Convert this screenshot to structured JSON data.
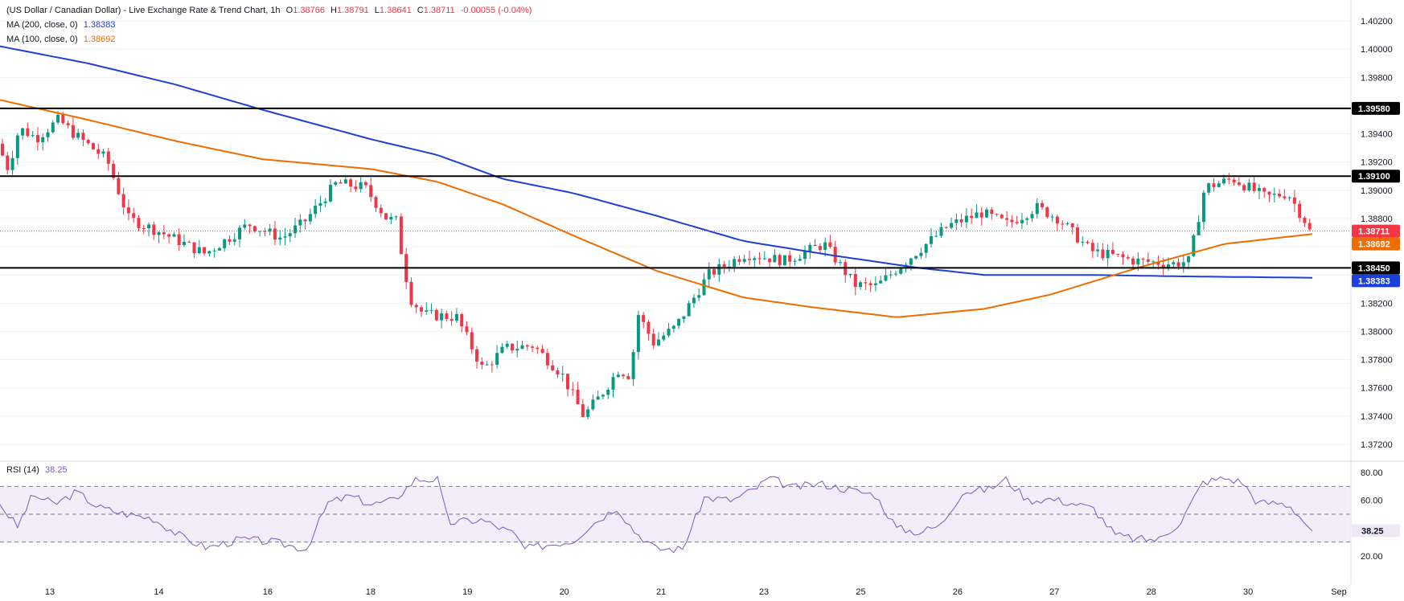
{
  "header": {
    "symbol": "(US Dollar / Canadian Dollar) - Live Exchange Rate & Trend Chart, 1h",
    "open_label": "O",
    "open": "1.38766",
    "high_label": "H",
    "high": "1.38791",
    "low_label": "L",
    "low": "1.38641",
    "close_label": "C",
    "close": "1.38711",
    "change": "-0.00055 (-0.04%)",
    "ma200_label": "MA (200, close, 0)",
    "ma200_value": "1.38383",
    "ma100_label": "MA (100, close, 0)",
    "ma100_value": "1.38692",
    "rsi_label": "RSI (14)",
    "rsi_value": "38.25"
  },
  "colors": {
    "up": "#089981",
    "down": "#f23645",
    "ma200": "#1e40d8",
    "ma100": "#ef6c00",
    "rsi": "#7e57c2",
    "rsi_band": "#ede7f6",
    "level": "#000000",
    "grid": "#f0f3fa"
  },
  "chart_data": [
    {
      "type": "candlestick",
      "title": "(US Dollar / Canadian Dollar) - Live Exchange Rate & Trend Chart, 1h",
      "y_axis_position": "right",
      "ylim": [
        1.3705,
        1.4026
      ],
      "y_ticks": [
        "1.40200",
        "1.40000",
        "1.39800",
        "1.39600",
        "1.39400",
        "1.39200",
        "1.39000",
        "1.38800",
        "1.38600",
        "1.38400",
        "1.38200",
        "1.38000",
        "1.37800",
        "1.37600",
        "1.37400",
        "1.37200"
      ],
      "x_ticks": [
        "13",
        "14",
        "16",
        "18",
        "19",
        "20",
        "21",
        "23",
        "25",
        "26",
        "27",
        "28",
        "30",
        "Sep"
      ],
      "x_tick_positions": [
        0.045,
        0.135,
        0.225,
        0.31,
        0.39,
        0.47,
        0.55,
        0.635,
        0.715,
        0.795,
        0.875,
        0.955,
        1.035,
        1.11
      ],
      "candle_count": 260,
      "price_path": [
        [
          0,
          1.3933
        ],
        [
          5,
          1.3915
        ],
        [
          10,
          1.3944
        ],
        [
          18,
          1.3937
        ],
        [
          28,
          1.395
        ],
        [
          35,
          1.394
        ],
        [
          50,
          1.3922
        ],
        [
          60,
          1.388
        ],
        [
          75,
          1.387
        ],
        [
          95,
          1.3855
        ],
        [
          115,
          1.3876
        ],
        [
          130,
          1.3866
        ],
        [
          140,
          1.3877
        ],
        [
          155,
          1.3905
        ],
        [
          168,
          1.3902
        ],
        [
          178,
          1.388
        ],
        [
          183,
          1.3878
        ],
        [
          185,
          1.3852
        ],
        [
          189,
          1.3823
        ],
        [
          195,
          1.3812
        ],
        [
          210,
          1.381
        ],
        [
          222,
          1.3773
        ],
        [
          232,
          1.3788
        ],
        [
          245,
          1.379
        ],
        [
          258,
          1.377
        ],
        [
          268,
          1.374
        ],
        [
          276,
          1.3755
        ],
        [
          284,
          1.3773
        ],
        [
          290,
          1.3768
        ],
        [
          292,
          1.3815
        ],
        [
          300,
          1.3792
        ],
        [
          310,
          1.3803
        ],
        [
          325,
          1.384
        ],
        [
          342,
          1.3855
        ],
        [
          360,
          1.385
        ],
        [
          378,
          1.3862
        ],
        [
          392,
          1.3833
        ],
        [
          402,
          1.3832
        ],
        [
          420,
          1.3856
        ],
        [
          435,
          1.3875
        ],
        [
          450,
          1.3884
        ],
        [
          462,
          1.3876
        ],
        [
          475,
          1.3888
        ],
        [
          485,
          1.388
        ],
        [
          500,
          1.3857
        ],
        [
          520,
          1.385
        ],
        [
          538,
          1.3848
        ],
        [
          545,
          1.385
        ],
        [
          552,
          1.3902
        ],
        [
          565,
          1.3908
        ],
        [
          580,
          1.3895
        ],
        [
          590,
          1.3898
        ],
        [
          598,
          1.3878
        ],
        [
          600,
          1.3871
        ]
      ],
      "price_path_units": "hour index within the session span (0-600), price",
      "horizontal_levels": [
        1.3958,
        1.391,
        1.3845
      ],
      "price_tags": [
        {
          "label": "1.39580",
          "price": 1.3958,
          "style": "level"
        },
        {
          "label": "1.39100",
          "price": 1.391,
          "style": "level"
        },
        {
          "label": "1.38711",
          "price": 1.38711,
          "style": "close"
        },
        {
          "label": "1.38692",
          "price": 1.38692,
          "style": "ma100"
        },
        {
          "label": "1.38450",
          "price": 1.3845,
          "style": "level"
        },
        {
          "label": "1.38383",
          "price": 1.38383,
          "style": "ma200"
        }
      ],
      "ma200_path": [
        [
          0,
          1.4002
        ],
        [
          40,
          1.399
        ],
        [
          80,
          1.3975
        ],
        [
          120,
          1.3957
        ],
        [
          170,
          1.3936
        ],
        [
          200,
          1.3925
        ],
        [
          230,
          1.3908
        ],
        [
          262,
          1.3898
        ],
        [
          300,
          1.3882
        ],
        [
          340,
          1.3864
        ],
        [
          380,
          1.3854
        ],
        [
          420,
          1.3845
        ],
        [
          450,
          1.384
        ],
        [
          500,
          1.384
        ],
        [
          540,
          1.3839
        ],
        [
          600,
          1.3838
        ]
      ],
      "ma100_path": [
        [
          0,
          1.3964
        ],
        [
          40,
          1.395
        ],
        [
          80,
          1.3935
        ],
        [
          120,
          1.3922
        ],
        [
          170,
          1.3915
        ],
        [
          200,
          1.3906
        ],
        [
          230,
          1.389
        ],
        [
          262,
          1.3868
        ],
        [
          300,
          1.3843
        ],
        [
          340,
          1.3824
        ],
        [
          372,
          1.3817
        ],
        [
          410,
          1.381
        ],
        [
          450,
          1.3816
        ],
        [
          480,
          1.3826
        ],
        [
          520,
          1.3845
        ],
        [
          560,
          1.3862
        ],
        [
          600,
          1.3869
        ]
      ]
    },
    {
      "type": "line",
      "title": "RSI (14)",
      "ylim": [
        16,
        84
      ],
      "y_ticks": [
        "80.00",
        "60.00",
        "20.00"
      ],
      "bands": [
        30,
        50,
        70
      ],
      "current_value": "38.25",
      "rsi_path": [
        [
          0,
          57
        ],
        [
          8,
          41
        ],
        [
          15,
          64
        ],
        [
          25,
          57
        ],
        [
          35,
          66
        ],
        [
          45,
          55
        ],
        [
          55,
          51
        ],
        [
          70,
          47
        ],
        [
          85,
          32
        ],
        [
          95,
          26
        ],
        [
          110,
          32
        ],
        [
          125,
          30
        ],
        [
          140,
          25
        ],
        [
          150,
          58
        ],
        [
          160,
          63
        ],
        [
          170,
          57
        ],
        [
          180,
          60
        ],
        [
          190,
          75
        ],
        [
          200,
          75
        ],
        [
          205,
          44
        ],
        [
          220,
          46
        ],
        [
          235,
          36
        ],
        [
          240,
          25
        ],
        [
          250,
          28
        ],
        [
          262,
          31
        ],
        [
          270,
          42
        ],
        [
          282,
          55
        ],
        [
          290,
          38
        ],
        [
          300,
          25
        ],
        [
          312,
          25
        ],
        [
          322,
          62
        ],
        [
          335,
          60
        ],
        [
          345,
          68
        ],
        [
          352,
          76
        ],
        [
          362,
          69
        ],
        [
          375,
          72
        ],
        [
          390,
          67
        ],
        [
          400,
          64
        ],
        [
          410,
          40
        ],
        [
          420,
          37
        ],
        [
          430,
          42
        ],
        [
          440,
          66
        ],
        [
          452,
          68
        ],
        [
          460,
          75
        ],
        [
          470,
          60
        ],
        [
          480,
          61
        ],
        [
          490,
          58
        ],
        [
          500,
          54
        ],
        [
          510,
          35
        ],
        [
          520,
          32
        ],
        [
          530,
          32
        ],
        [
          540,
          45
        ],
        [
          550,
          73
        ],
        [
          560,
          76
        ],
        [
          568,
          73
        ],
        [
          575,
          58
        ],
        [
          585,
          58
        ],
        [
          590,
          56
        ],
        [
          600,
          38
        ]
      ]
    }
  ]
}
